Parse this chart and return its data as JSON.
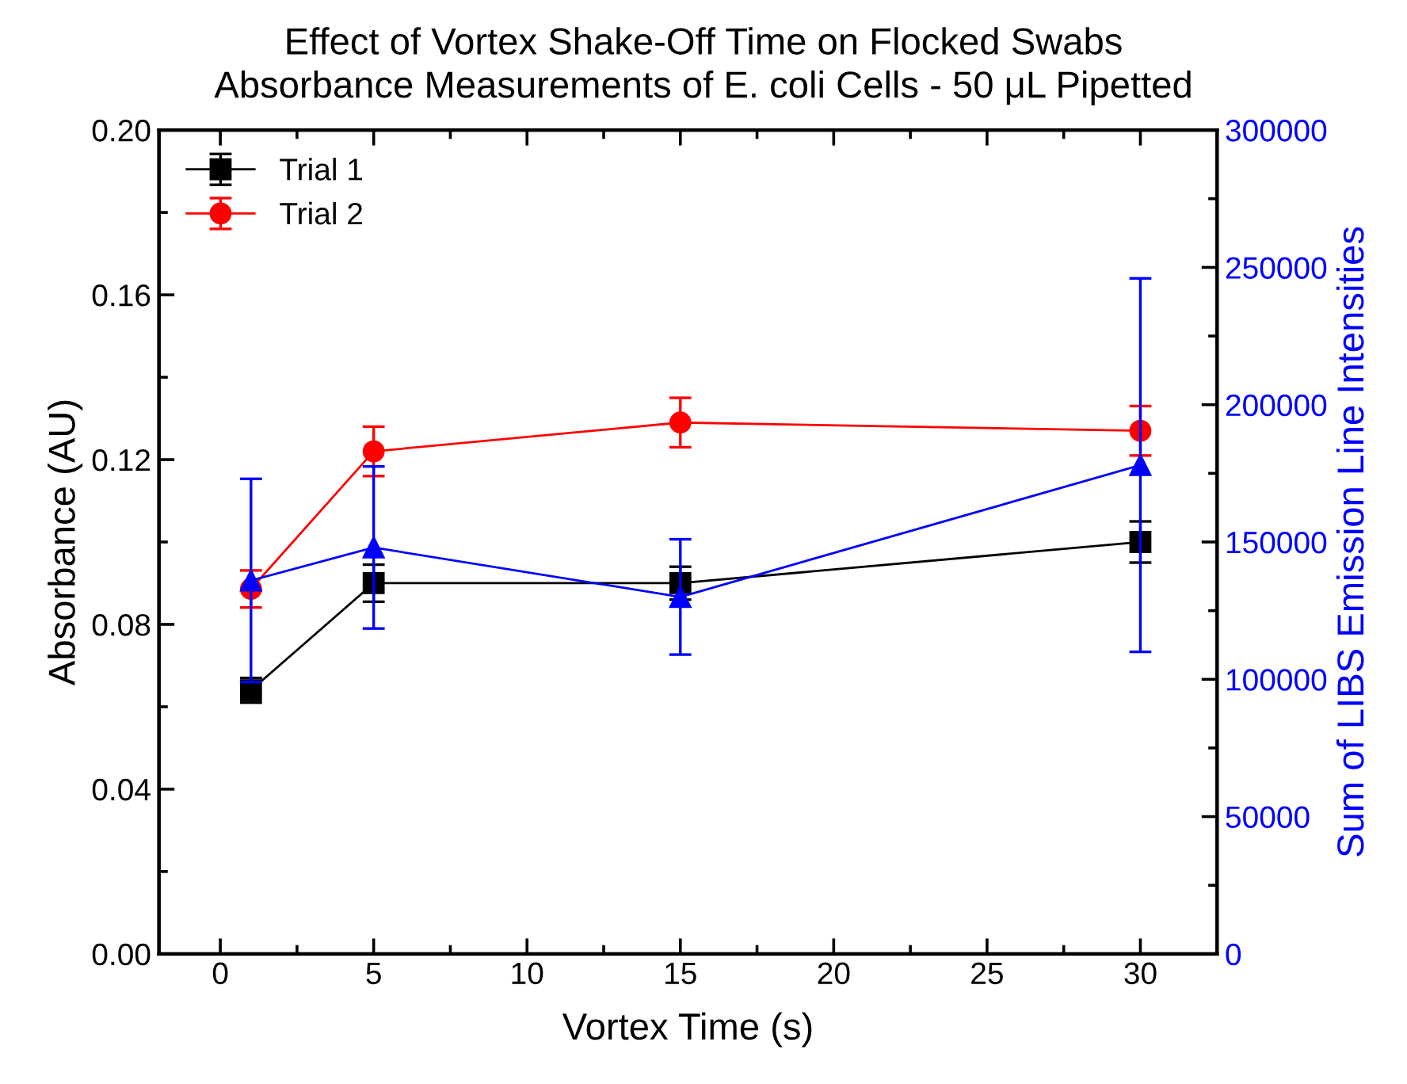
{
  "chart_data": {
    "type": "line",
    "title": "Effect of Vortex Shake-Off Time on Flocked Swabs",
    "subtitle": "Absorbance Measurements of E. coli Cells - 50 μL Pipetted",
    "xlabel": "Vortex Time (s)",
    "ylabel": "Absorbance (AU)",
    "y2label": "Sum of LIBS Emission Line Intensities",
    "x": [
      1,
      5,
      15,
      30
    ],
    "series": [
      {
        "name": "Trial 1",
        "color": "#000000",
        "marker": "square",
        "values": [
          0.064,
          0.09,
          0.09,
          0.1
        ],
        "errors": [
          0.003,
          0.0045,
          0.004,
          0.005
        ]
      },
      {
        "name": "Trial 2",
        "color": "#ff0000",
        "marker": "circle",
        "values": [
          0.0886,
          0.122,
          0.129,
          0.127
        ],
        "errors": [
          0.0045,
          0.006,
          0.006,
          0.006
        ]
      },
      {
        "color": "#0000ff",
        "marker": "triangle",
        "axis": "y2",
        "values": [
          136000,
          148000,
          130000,
          178000
        ],
        "errors": [
          37000,
          29500,
          21000,
          68000
        ]
      }
    ],
    "xlim": [
      -2,
      32.5
    ],
    "xticks": [
      0,
      5,
      10,
      15,
      20,
      25,
      30
    ],
    "ylim": [
      0,
      0.2
    ],
    "yticks": [
      {
        "value": 0,
        "label": "0.00"
      },
      {
        "value": 0.04,
        "label": "0.04"
      },
      {
        "value": 0.08,
        "label": "0.08"
      },
      {
        "value": 0.12,
        "label": "0.12"
      },
      {
        "value": 0.16,
        "label": "0.16"
      },
      {
        "value": 0.2,
        "label": "0.20"
      }
    ],
    "y2lim": [
      0,
      300000
    ],
    "y2ticks": [
      0,
      50000,
      100000,
      150000,
      200000,
      250000,
      300000
    ],
    "legend": "top left",
    "grid": false
  }
}
